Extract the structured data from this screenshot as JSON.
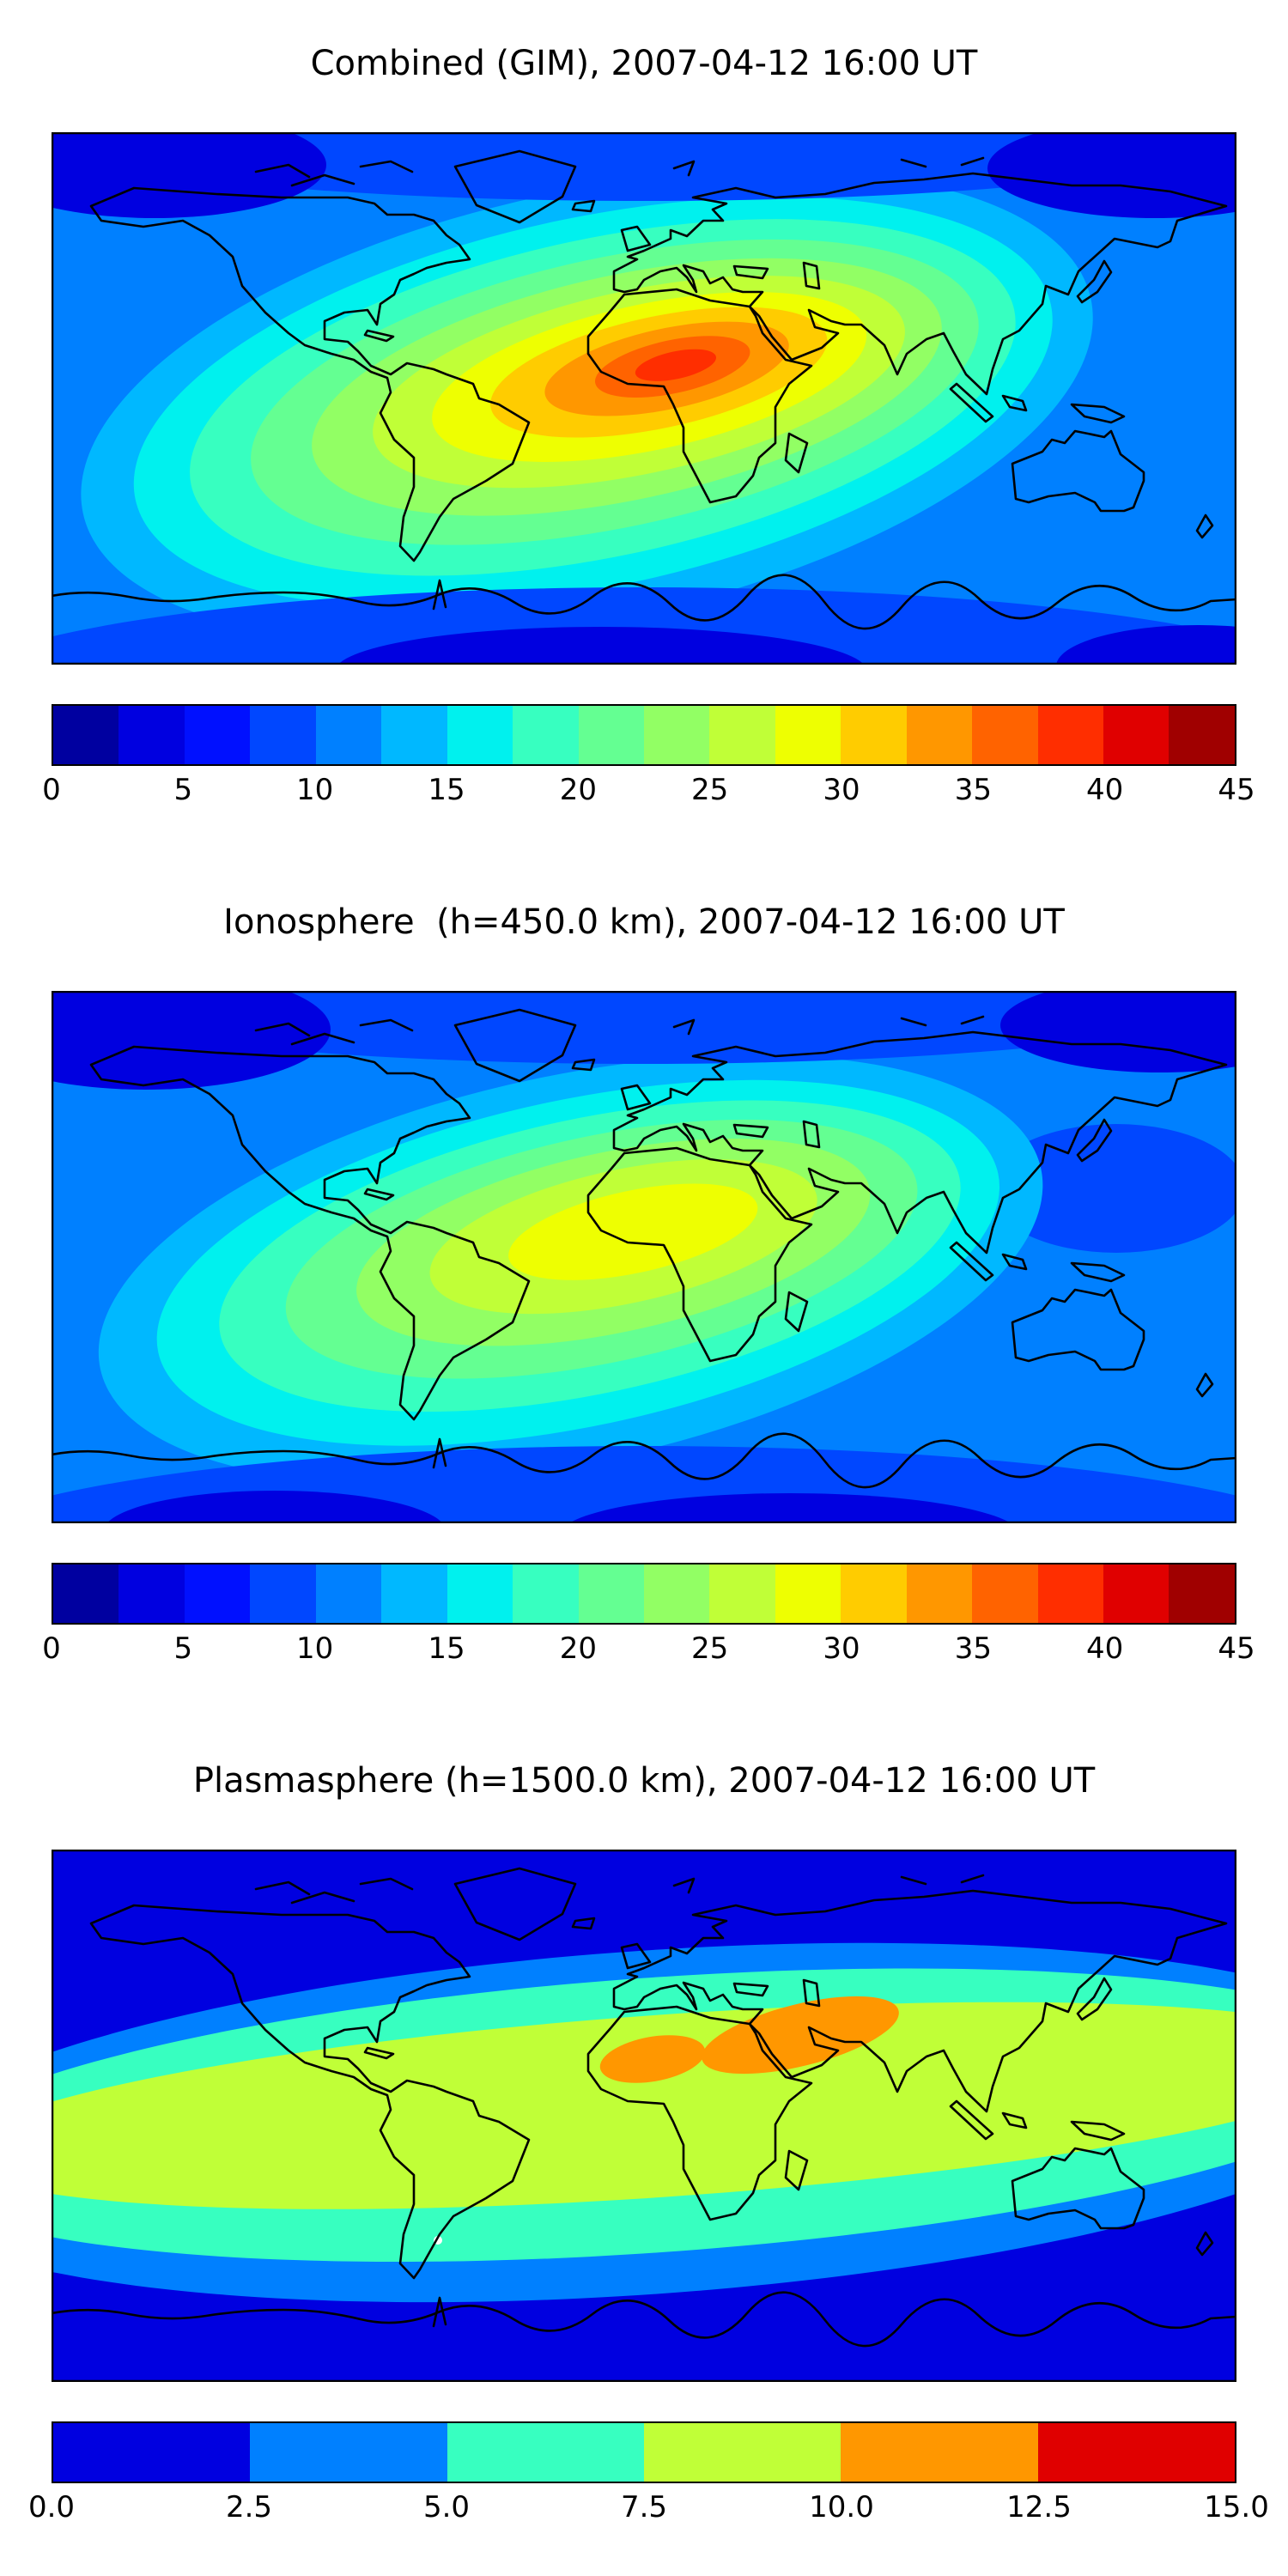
{
  "figure": {
    "background": "#ffffff"
  },
  "panels": [
    {
      "title": "Combined (GIM), 2007-04-12 16:00 UT",
      "colorbar": {
        "tick_labels": [
          "0",
          "5",
          "10",
          "15",
          "20",
          "25",
          "30",
          "35",
          "40",
          "45"
        ],
        "segment_colors": [
          "#0000a0",
          "#0000e0",
          "#0010ff",
          "#0047ff",
          "#0080ff",
          "#00b8ff",
          "#00f1ee",
          "#37ffc0",
          "#64ff92",
          "#92ff64",
          "#c0ff37",
          "#eeff01",
          "#ffcc00",
          "#ff9700",
          "#ff6300",
          "#ff2e00",
          "#e00000",
          "#a00000"
        ]
      }
    },
    {
      "title": "Ionosphere  (h=450.0 km), 2007-04-12 16:00 UT",
      "colorbar": {
        "tick_labels": [
          "0",
          "5",
          "10",
          "15",
          "20",
          "25",
          "30",
          "35",
          "40",
          "45"
        ],
        "segment_colors": [
          "#0000a0",
          "#0000e0",
          "#0010ff",
          "#0047ff",
          "#0080ff",
          "#00b8ff",
          "#00f1ee",
          "#37ffc0",
          "#64ff92",
          "#92ff64",
          "#c0ff37",
          "#eeff01",
          "#ffcc00",
          "#ff9700",
          "#ff6300",
          "#ff2e00",
          "#e00000",
          "#a00000"
        ]
      }
    },
    {
      "title": "Plasmasphere (h=1500.0 km), 2007-04-12 16:00 UT",
      "colorbar": {
        "tick_labels": [
          "0.0",
          "2.5",
          "5.0",
          "7.5",
          "10.0",
          "12.5",
          "15.0"
        ],
        "segment_colors": [
          "#0000e0",
          "#0080ff",
          "#37ffc0",
          "#c0ff37",
          "#ff9700",
          "#e00000"
        ]
      }
    }
  ],
  "chart_data": [
    {
      "type": "heatmap",
      "variant": "filled_contour_world_map",
      "title": "Combined (GIM), 2007-04-12 16:00 UT",
      "projection": "equirectangular",
      "lon_range": [
        -180,
        180
      ],
      "lat_range": [
        -90,
        90
      ],
      "colormap": "jet",
      "levels": {
        "vmin": 0,
        "vmax": 45,
        "n_bands": 18,
        "band_step": 2.5
      },
      "colorbar_ticks": [
        0,
        5,
        10,
        15,
        20,
        25,
        30,
        35,
        40,
        45
      ],
      "legend_position": "bottom-horizontal-colorbar",
      "features": [
        {
          "name": "equatorial-enhancement",
          "peak_value_approx": 43,
          "peak_lon": 10,
          "peak_lat": 7,
          "extent": "elongated tilted blob from eastern South America (-70E) across equatorial Atlantic and West Africa to the Middle East (50E), values 20-43"
        },
        {
          "name": "midlatitude-background",
          "value_approx": 8
        },
        {
          "name": "polar-minima",
          "value_approx": 3,
          "locations": "NW North America, NE Asia, high southern latitudes"
        }
      ]
    },
    {
      "type": "heatmap",
      "variant": "filled_contour_world_map",
      "title": "Ionosphere  (h=450.0 km), 2007-04-12 16:00 UT",
      "projection": "equirectangular",
      "lon_range": [
        -180,
        180
      ],
      "lat_range": [
        -90,
        90
      ],
      "colormap": "jet",
      "levels": {
        "vmin": 0,
        "vmax": 45,
        "n_bands": 18,
        "band_step": 2.5
      },
      "colorbar_ticks": [
        0,
        5,
        10,
        15,
        20,
        25,
        30,
        35,
        40,
        45
      ],
      "legend_position": "bottom-horizontal-colorbar",
      "features": [
        {
          "name": "equatorial-enhancement",
          "peak_value_approx": 31,
          "peak_lon": 0,
          "peak_lat": 8,
          "extent": "same tilted blob as combined map but weaker, maximum yellow band over West Africa / eastern Atlantic, values 15-31"
        },
        {
          "name": "midlatitude-background",
          "value_approx": 7
        },
        {
          "name": "polar-minima",
          "value_approx": 2,
          "locations": "NW North America, NE Asia, high southern latitudes"
        }
      ]
    },
    {
      "type": "heatmap",
      "variant": "filled_contour_world_map",
      "title": "Plasmasphere (h=1500.0 km), 2007-04-12 16:00 UT",
      "projection": "equirectangular",
      "lon_range": [
        -180,
        180
      ],
      "lat_range": [
        -90,
        90
      ],
      "colormap": "jet",
      "levels": {
        "vmin": 0,
        "vmax": 15,
        "n_bands": 6,
        "band_step": 2.5
      },
      "colorbar_ticks": [
        0.0,
        2.5,
        5.0,
        7.5,
        10.0,
        12.5,
        15.0
      ],
      "legend_position": "bottom-horizontal-colorbar",
      "features": [
        {
          "name": "equatorial-band",
          "value_approx": 8.5,
          "extent": "yellow-green 7.5-10 band circling the globe roughly lat -30 to +35, tilted slightly up toward Asia"
        },
        {
          "name": "peak-north-africa",
          "peak_value_approx": 11,
          "peak_lon": 2,
          "peak_lat": 19
        },
        {
          "name": "peak-middle-east",
          "peak_value_approx": 12,
          "peak_lon": 47,
          "peak_lat": 27
        },
        {
          "name": "polar-background",
          "value_approx": 1.5
        }
      ]
    }
  ]
}
